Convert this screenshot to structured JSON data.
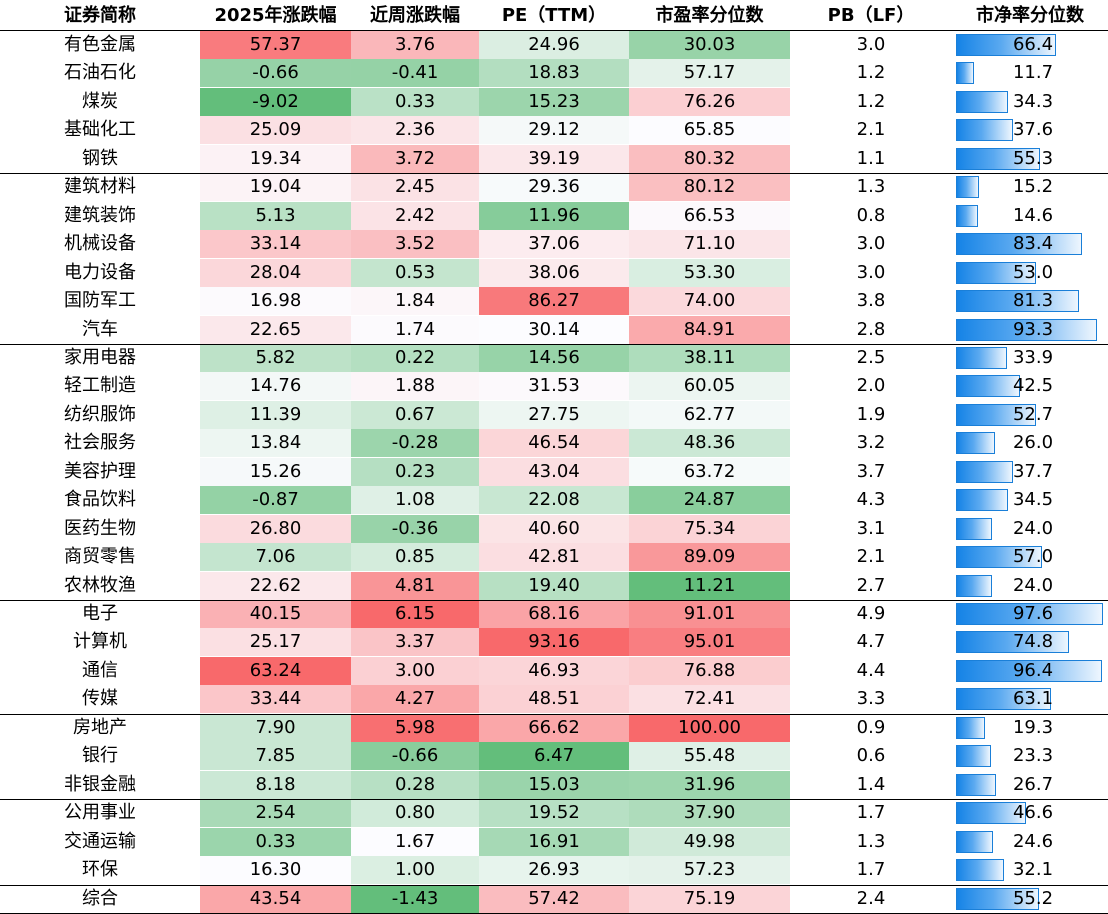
{
  "header": {
    "name": "证券简称",
    "ytd_change": "2025年涨跌幅",
    "week_change": "近周涨跌幅",
    "pe": "PE（TTM）",
    "pe_pct": "市盈率分位数",
    "pb": "PB（LF）",
    "pb_pct": "市净率分位数"
  },
  "rows": [
    {
      "name": "有色金属",
      "ytd": "57.37",
      "week": "3.76",
      "pe": "24.96",
      "pe_pct": "30.03",
      "pb": "3.0",
      "pb_pct": "66.4"
    },
    {
      "name": "石油石化",
      "ytd": "-0.66",
      "week": "-0.41",
      "pe": "18.83",
      "pe_pct": "57.17",
      "pb": "1.2",
      "pb_pct": "11.7"
    },
    {
      "name": "煤炭",
      "ytd": "-9.02",
      "week": "0.33",
      "pe": "15.23",
      "pe_pct": "76.26",
      "pb": "1.2",
      "pb_pct": "34.3"
    },
    {
      "name": "基础化工",
      "ytd": "25.09",
      "week": "2.36",
      "pe": "29.12",
      "pe_pct": "65.85",
      "pb": "2.1",
      "pb_pct": "37.6"
    },
    {
      "name": "钢铁",
      "ytd": "19.34",
      "week": "3.72",
      "pe": "39.19",
      "pe_pct": "80.32",
      "pb": "1.1",
      "pb_pct": "55.3"
    },
    {
      "name": "建筑材料",
      "ytd": "19.04",
      "week": "2.45",
      "pe": "29.36",
      "pe_pct": "80.12",
      "pb": "1.3",
      "pb_pct": "15.2"
    },
    {
      "name": "建筑装饰",
      "ytd": "5.13",
      "week": "2.42",
      "pe": "11.96",
      "pe_pct": "66.53",
      "pb": "0.8",
      "pb_pct": "14.6"
    },
    {
      "name": "机械设备",
      "ytd": "33.14",
      "week": "3.52",
      "pe": "37.06",
      "pe_pct": "71.10",
      "pb": "3.0",
      "pb_pct": "83.4"
    },
    {
      "name": "电力设备",
      "ytd": "28.04",
      "week": "0.53",
      "pe": "38.06",
      "pe_pct": "53.30",
      "pb": "3.0",
      "pb_pct": "53.0"
    },
    {
      "name": "国防军工",
      "ytd": "16.98",
      "week": "1.84",
      "pe": "86.27",
      "pe_pct": "74.00",
      "pb": "3.8",
      "pb_pct": "81.3"
    },
    {
      "name": "汽车",
      "ytd": "22.65",
      "week": "1.74",
      "pe": "30.14",
      "pe_pct": "84.91",
      "pb": "2.8",
      "pb_pct": "93.3"
    },
    {
      "name": "家用电器",
      "ytd": "5.82",
      "week": "0.22",
      "pe": "14.56",
      "pe_pct": "38.11",
      "pb": "2.5",
      "pb_pct": "33.9"
    },
    {
      "name": "轻工制造",
      "ytd": "14.76",
      "week": "1.88",
      "pe": "31.53",
      "pe_pct": "60.05",
      "pb": "2.0",
      "pb_pct": "42.5"
    },
    {
      "name": "纺织服饰",
      "ytd": "11.39",
      "week": "0.67",
      "pe": "27.75",
      "pe_pct": "62.77",
      "pb": "1.9",
      "pb_pct": "52.7"
    },
    {
      "name": "社会服务",
      "ytd": "13.84",
      "week": "-0.28",
      "pe": "46.54",
      "pe_pct": "48.36",
      "pb": "3.2",
      "pb_pct": "26.0"
    },
    {
      "name": "美容护理",
      "ytd": "15.26",
      "week": "0.23",
      "pe": "43.04",
      "pe_pct": "63.72",
      "pb": "3.7",
      "pb_pct": "37.7"
    },
    {
      "name": "食品饮料",
      "ytd": "-0.87",
      "week": "1.08",
      "pe": "22.08",
      "pe_pct": "24.87",
      "pb": "4.3",
      "pb_pct": "34.5"
    },
    {
      "name": "医药生物",
      "ytd": "26.80",
      "week": "-0.36",
      "pe": "40.60",
      "pe_pct": "75.34",
      "pb": "3.1",
      "pb_pct": "24.0"
    },
    {
      "name": "商贸零售",
      "ytd": "7.06",
      "week": "0.85",
      "pe": "42.81",
      "pe_pct": "89.09",
      "pb": "2.1",
      "pb_pct": "57.0"
    },
    {
      "name": "农林牧渔",
      "ytd": "22.62",
      "week": "4.81",
      "pe": "19.40",
      "pe_pct": "11.21",
      "pb": "2.7",
      "pb_pct": "24.0"
    },
    {
      "name": "电子",
      "ytd": "40.15",
      "week": "6.15",
      "pe": "68.16",
      "pe_pct": "91.01",
      "pb": "4.9",
      "pb_pct": "97.6"
    },
    {
      "name": "计算机",
      "ytd": "25.17",
      "week": "3.37",
      "pe": "93.16",
      "pe_pct": "95.01",
      "pb": "4.7",
      "pb_pct": "74.8"
    },
    {
      "name": "通信",
      "ytd": "63.24",
      "week": "3.00",
      "pe": "46.93",
      "pe_pct": "76.88",
      "pb": "4.4",
      "pb_pct": "96.4"
    },
    {
      "name": "传媒",
      "ytd": "33.44",
      "week": "4.27",
      "pe": "48.51",
      "pe_pct": "72.41",
      "pb": "3.3",
      "pb_pct": "63.1"
    },
    {
      "name": "房地产",
      "ytd": "7.90",
      "week": "5.98",
      "pe": "66.62",
      "pe_pct": "100.00",
      "pb": "0.9",
      "pb_pct": "19.3"
    },
    {
      "name": "银行",
      "ytd": "7.85",
      "week": "-0.66",
      "pe": "6.47",
      "pe_pct": "55.48",
      "pb": "0.6",
      "pb_pct": "23.3"
    },
    {
      "name": "非银金融",
      "ytd": "8.18",
      "week": "0.28",
      "pe": "15.03",
      "pe_pct": "31.96",
      "pb": "1.4",
      "pb_pct": "26.7"
    },
    {
      "name": "公用事业",
      "ytd": "2.54",
      "week": "0.80",
      "pe": "19.52",
      "pe_pct": "37.90",
      "pb": "1.7",
      "pb_pct": "46.6"
    },
    {
      "name": "交通运输",
      "ytd": "0.33",
      "week": "1.67",
      "pe": "16.91",
      "pe_pct": "49.98",
      "pb": "1.3",
      "pb_pct": "24.6"
    },
    {
      "name": "环保",
      "ytd": "16.30",
      "week": "1.00",
      "pe": "26.93",
      "pe_pct": "57.23",
      "pb": "1.7",
      "pb_pct": "32.1"
    },
    {
      "name": "综合",
      "ytd": "43.54",
      "week": "-1.43",
      "pe": "57.42",
      "pe_pct": "75.19",
      "pb": "2.4",
      "pb_pct": "55.2"
    }
  ],
  "group_breaks_after": [
    4,
    10,
    19,
    23,
    26,
    29
  ],
  "colors": {
    "high": "#f8696b",
    "mid": "#fcfcff",
    "low": "#63be7b",
    "bar_border": "#1a7fd8",
    "bar_fill": "#1583e6",
    "rule": "#000000"
  }
}
